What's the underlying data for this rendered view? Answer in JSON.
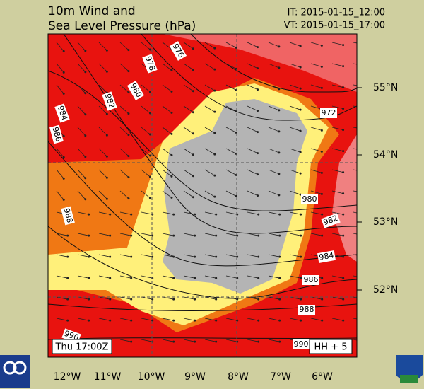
{
  "header": {
    "title_lines": [
      "10m Wind and",
      "Sea Level Pressure (hPa)"
    ],
    "it": "IT: 2015-01-15_12:00",
    "vt": "VT: 2015-01-15_17:00"
  },
  "map": {
    "lon_labels": [
      "12°W",
      "11°W",
      "10°W",
      "9°W",
      "8°W",
      "7°W",
      "6°W"
    ],
    "lat_labels": [
      "55°N",
      "54°N",
      "53°N",
      "52°N"
    ],
    "isobar_labels": [
      "976",
      "978",
      "980",
      "982",
      "984",
      "986",
      "988",
      "972",
      "980",
      "982",
      "984",
      "986",
      "988",
      "990",
      "990"
    ],
    "time_label": "Thu 17:00Z",
    "lead_label": "HH + 5"
  }
}
